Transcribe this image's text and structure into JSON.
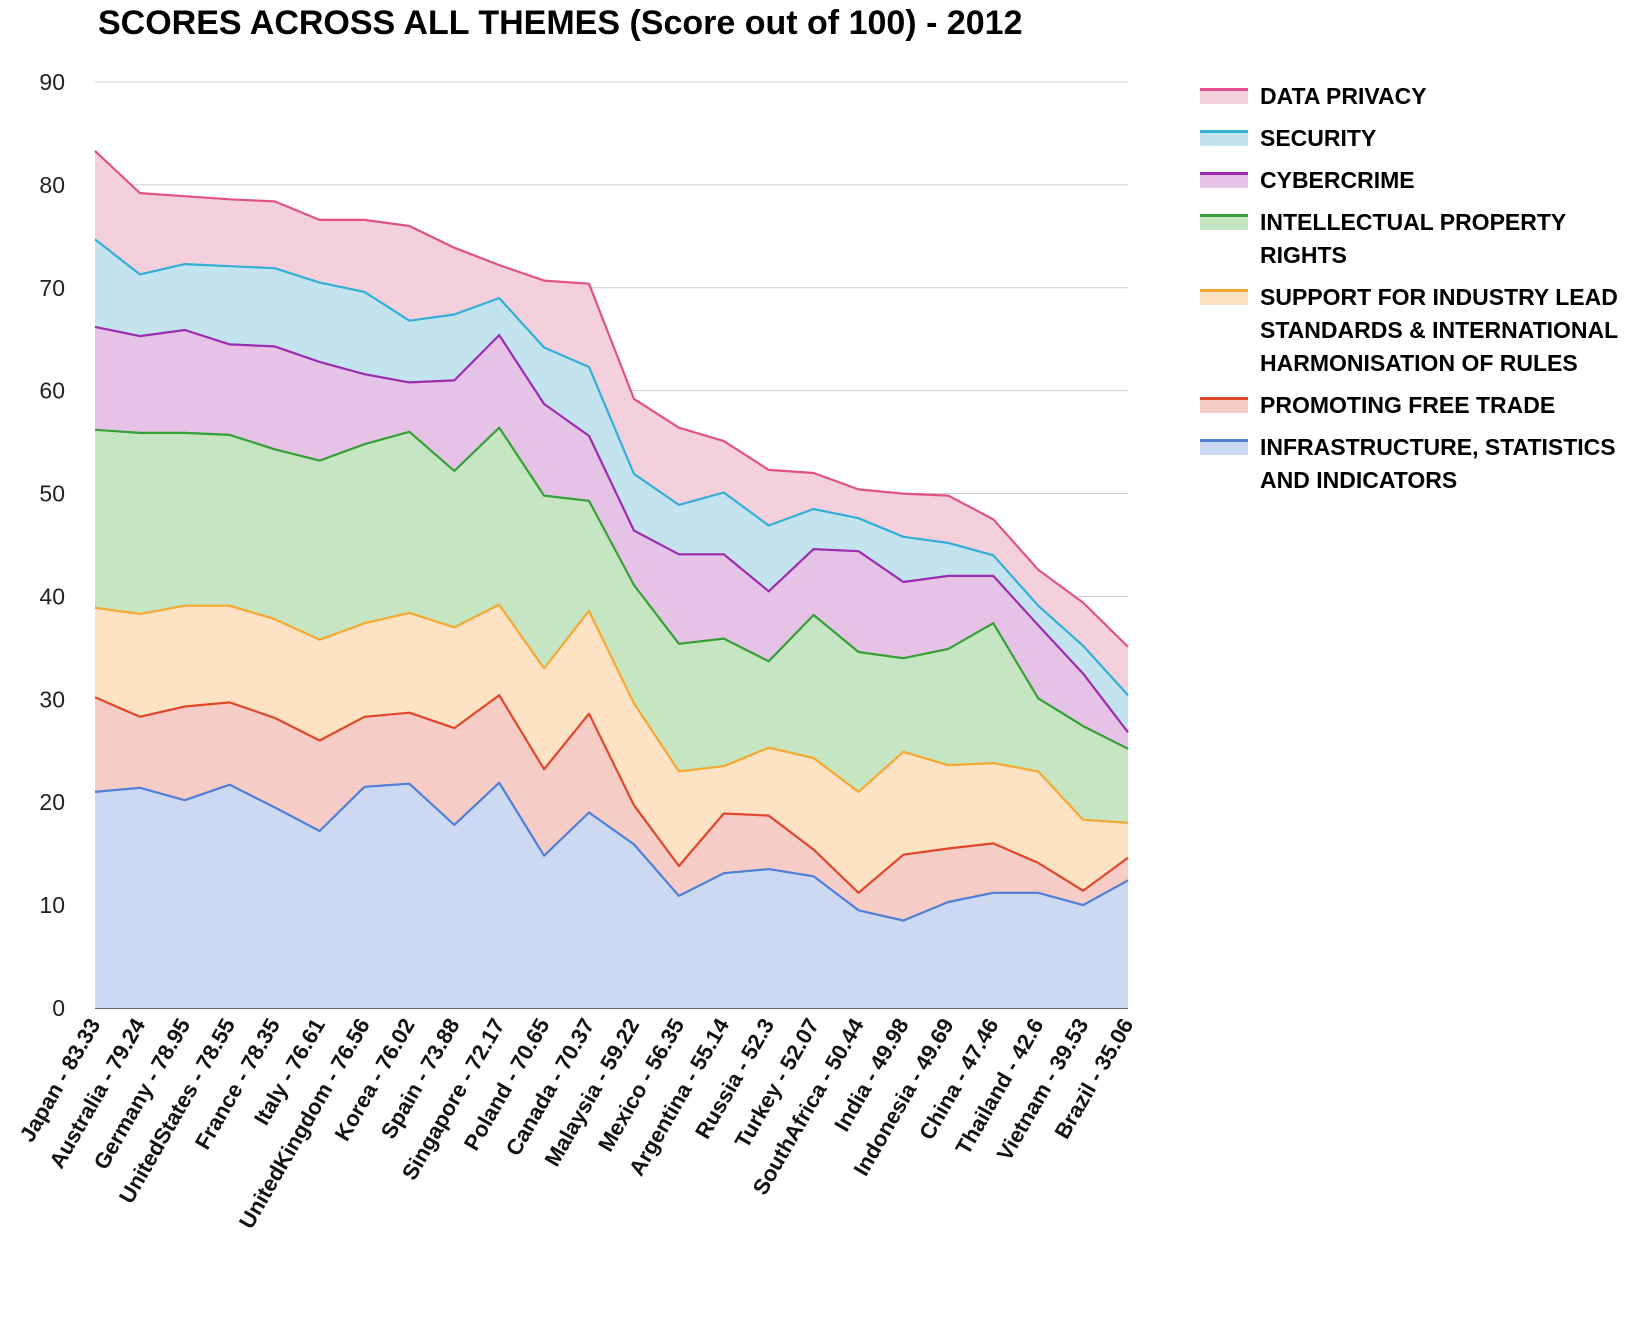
{
  "chart_data": {
    "type": "area",
    "stacked": true,
    "title": "SCORES ACROSS ALL THEMES (Score out of 100) - 2012",
    "xlabel": "",
    "ylabel": "",
    "ylim": [
      0,
      90
    ],
    "yticks": [
      0,
      10,
      20,
      30,
      40,
      50,
      60,
      70,
      80,
      90
    ],
    "grid": true,
    "legend_position": "right",
    "categories": [
      "Japan - 83.33",
      "Australia - 79.24",
      "Germany - 78.95",
      "UnitedStates - 78.55",
      "France - 78.35",
      "Italy - 76.61",
      "UnitedKingdom - 76.56",
      "Korea - 76.02",
      "Spain - 73.88",
      "Singapore - 72.17",
      "Poland - 70.65",
      "Canada - 70.37",
      "Malaysia - 59.22",
      "Mexico - 56.35",
      "Argentina - 55.14",
      "Russia - 52.3",
      "Turkey - 52.07",
      "SouthAfrica - 50.44",
      "India - 49.98",
      "Indonesia - 49.69",
      "China - 47.46",
      "Thailand - 42.6",
      "Vietnam - 39.53",
      "Brazil - 35.06"
    ],
    "series": [
      {
        "name": "INFRASTRUCTURE, STATISTICS AND INDICATORS",
        "color": "#4f7fd9",
        "fill": "#cdd9f3",
        "values": [
          21.0,
          21.4,
          20.2,
          21.7,
          19.5,
          17.2,
          21.5,
          21.8,
          17.8,
          21.9,
          14.8,
          19.0,
          15.9,
          10.9,
          13.1,
          13.5,
          12.8,
          9.5,
          8.5,
          10.3,
          11.2,
          11.2,
          10.0,
          12.4
        ]
      },
      {
        "name": "PROMOTING FREE TRADE",
        "color": "#e0462a",
        "fill": "#f5cdc6",
        "values": [
          9.2,
          6.9,
          9.1,
          8.0,
          8.7,
          8.8,
          6.8,
          6.9,
          9.4,
          8.5,
          8.4,
          9.6,
          3.8,
          2.9,
          5.8,
          5.2,
          2.6,
          1.7,
          6.4,
          5.2,
          4.8,
          2.9,
          1.4,
          2.2
        ]
      },
      {
        "name": "SUPPORT FOR INDUSTRY LEAD STANDARDS & INTERNATIONAL HARMONISATION OF RULES",
        "color": "#f6a830",
        "fill": "#fde3c4",
        "values": [
          8.7,
          10.0,
          9.8,
          9.4,
          9.6,
          9.8,
          9.1,
          9.7,
          9.8,
          8.8,
          9.8,
          10.0,
          9.9,
          9.2,
          4.6,
          6.6,
          8.9,
          9.8,
          10.0,
          8.1,
          7.8,
          8.9,
          6.9,
          3.4
        ]
      },
      {
        "name": "INTELLECTUAL PROPERTY RIGHTS",
        "color": "#35a035",
        "fill": "#c6e6c3",
        "values": [
          17.3,
          17.6,
          16.8,
          16.6,
          16.5,
          17.4,
          17.4,
          17.6,
          15.2,
          17.2,
          16.8,
          10.7,
          11.5,
          12.4,
          12.4,
          8.4,
          13.9,
          13.6,
          9.1,
          11.3,
          13.6,
          7.1,
          9.1,
          7.2
        ]
      },
      {
        "name": "CYBERCRIME",
        "color": "#9b2bb1",
        "fill": "#e6c3e6",
        "values": [
          10.0,
          9.4,
          10.0,
          8.8,
          10.0,
          9.6,
          6.8,
          4.8,
          8.8,
          9.0,
          8.9,
          6.3,
          5.3,
          8.7,
          8.2,
          6.8,
          6.4,
          9.8,
          7.4,
          7.1,
          4.6,
          7.1,
          5.1,
          1.6
        ]
      },
      {
        "name": "SECURITY",
        "color": "#33aed6",
        "fill": "#c3e4ee",
        "values": [
          8.5,
          6.0,
          6.4,
          7.6,
          7.6,
          7.7,
          8.0,
          6.0,
          6.4,
          3.6,
          5.5,
          6.7,
          5.5,
          4.8,
          6.0,
          6.4,
          3.9,
          3.2,
          4.4,
          3.2,
          2.0,
          1.9,
          2.7,
          3.6
        ]
      },
      {
        "name": "DATA PRIVACY",
        "color": "#e0518a",
        "fill": "#f4cfdc",
        "values": [
          8.6,
          7.9,
          6.6,
          6.5,
          6.5,
          6.1,
          7.0,
          9.2,
          6.5,
          3.2,
          6.5,
          8.1,
          7.3,
          7.5,
          5.0,
          5.4,
          3.5,
          2.8,
          4.2,
          4.6,
          3.5,
          3.5,
          4.2,
          4.7
        ]
      }
    ]
  }
}
